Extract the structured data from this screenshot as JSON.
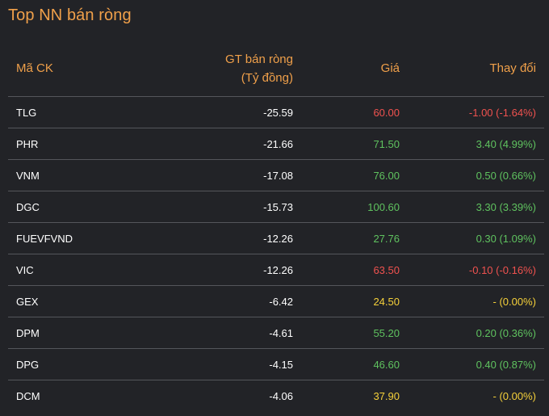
{
  "title": "Top NN bán ròng",
  "headers": {
    "symbol": "Mã CK",
    "value_line1": "GT bán ròng",
    "value_line2": "(Tỷ đồng)",
    "price": "Giá",
    "change": "Thay đổi"
  },
  "status_colors": {
    "down": "#f0524f",
    "up": "#5fc25f",
    "flat": "#f5d03a",
    "header": "#f0a04a"
  },
  "rows": [
    {
      "symbol": "TLG",
      "value": "-25.59",
      "price": "60.00",
      "change": "-1.00 (-1.64%)",
      "trend": "down"
    },
    {
      "symbol": "PHR",
      "value": "-21.66",
      "price": "71.50",
      "change": "3.40 (4.99%)",
      "trend": "up"
    },
    {
      "symbol": "VNM",
      "value": "-17.08",
      "price": "76.00",
      "change": "0.50 (0.66%)",
      "trend": "up"
    },
    {
      "symbol": "DGC",
      "value": "-15.73",
      "price": "100.60",
      "change": "3.30 (3.39%)",
      "trend": "up"
    },
    {
      "symbol": "FUEVFVND",
      "value": "-12.26",
      "price": "27.76",
      "change": "0.30 (1.09%)",
      "trend": "up"
    },
    {
      "symbol": "VIC",
      "value": "-12.26",
      "price": "63.50",
      "change": "-0.10 (-0.16%)",
      "trend": "down"
    },
    {
      "symbol": "GEX",
      "value": "-6.42",
      "price": "24.50",
      "change": "- (0.00%)",
      "trend": "flat"
    },
    {
      "symbol": "DPM",
      "value": "-4.61",
      "price": "55.20",
      "change": "0.20 (0.36%)",
      "trend": "up"
    },
    {
      "symbol": "DPG",
      "value": "-4.15",
      "price": "46.60",
      "change": "0.40 (0.87%)",
      "trend": "up"
    },
    {
      "symbol": "DCM",
      "value": "-4.06",
      "price": "37.90",
      "change": "- (0.00%)",
      "trend": "flat"
    }
  ]
}
